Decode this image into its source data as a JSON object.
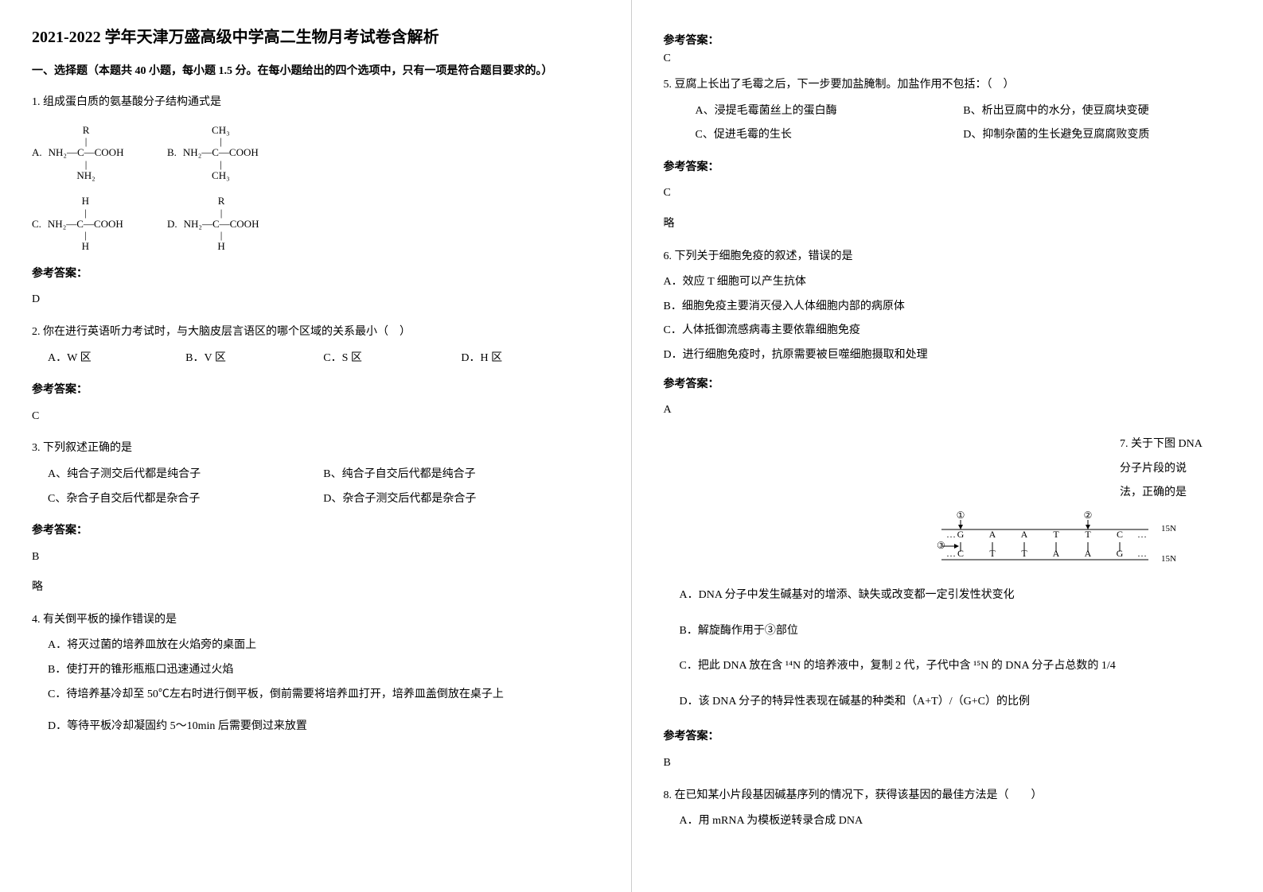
{
  "title": "2021-2022 学年天津万盛高级中学高二生物月考试卷含解析",
  "section1_heading": "一、选择题（本题共 40 小题，每小题 1.5 分。在每小题给出的四个选项中，只有一项是符合题目要求的。）",
  "answer_label": "参考答案：",
  "note_text": "略",
  "q1": {
    "stem": "1. 组成蛋白质的氨基酸分子结构通式是",
    "formula": {
      "A_label": "A.",
      "A_top": "R",
      "A_mid": "NH₂—C—COOH",
      "A_bot": "NH₂",
      "B_label": "B.",
      "B_top": "CH₃",
      "B_mid": "NH₂—C—COOH",
      "B_bot": "CH₃",
      "C_label": "C.",
      "C_top": "H",
      "C_mid": "NH₂—C—COOH",
      "C_bot": "H",
      "D_label": "D.",
      "D_top": "R",
      "D_mid": "NH₂—C—COOH",
      "D_bot": "H"
    },
    "answer": "D"
  },
  "q2": {
    "stem": "2. 你在进行英语听力考试时，与大脑皮层言语区的哪个区域的关系最小（　）",
    "choices": {
      "A": "A．W 区",
      "B": "B．V 区",
      "C": "C．S 区",
      "D": "D．H 区"
    },
    "answer": "C"
  },
  "q3": {
    "stem": "3. 下列叙述正确的是",
    "choices": {
      "A": "A、纯合子测交后代都是纯合子",
      "B": "B、纯合子自交后代都是纯合子",
      "C": "C、杂合子自交后代都是杂合子",
      "D": "D、杂合子测交后代都是杂合子"
    },
    "answer": "B"
  },
  "q4": {
    "stem": "4. 有关倒平板的操作错误的是",
    "choices": {
      "A": "A．将灭过菌的培养皿放在火焰旁的桌面上",
      "B": "B．使打开的锥形瓶瓶口迅速通过火焰",
      "C": "C．待培养基冷却至 50℃左右时进行倒平板，倒前需要将培养皿打开，培养皿盖倒放在桌子上",
      "D": "D．等待平板冷却凝固约 5～10min 后需要倒过来放置"
    },
    "answer": "C"
  },
  "q5": {
    "stem": "5. 豆腐上长出了毛霉之后，下一步要加盐腌制。加盐作用不包括：（　）",
    "choices": {
      "A": "A、浸提毛霉菌丝上的蛋白酶",
      "B": "B、析出豆腐中的水分，使豆腐块变硬",
      "C": "C、促进毛霉的生长",
      "D": "D、抑制杂菌的生长避免豆腐腐败变质"
    },
    "answer": "C"
  },
  "q6": {
    "stem": "6. 下列关于细胞免疫的叙述，错误的是",
    "choices": {
      "A": "A．效应 T 细胞可以产生抗体",
      "B": "B．细胞免疫主要消灭侵入人体细胞内部的病原体",
      "C": "C．人体抵御流感病毒主要依靠细胞免疫",
      "D": "D．进行细胞免疫时，抗原需要被巨噬细胞摄取和处理"
    },
    "answer": "A"
  },
  "q7": {
    "stem_l1": "7. 关于下图 DNA",
    "stem_l2": "分子片段的说",
    "stem_l3": "法，正确的是",
    "dna": {
      "top_bases": [
        "G",
        "A",
        "A",
        "T",
        "T",
        "C"
      ],
      "bottom_bases": [
        "C",
        "T",
        "T",
        "A",
        "A",
        "G"
      ],
      "arrow1_label": "①",
      "arrow2_label": "②",
      "left_label": "③",
      "n15_top": "15N",
      "n15_bot": "15N",
      "top_arrow_idx": [
        0,
        4
      ],
      "colors": {
        "line": "#000",
        "text": "#000"
      },
      "font_size": 12
    },
    "choices": {
      "A": "A．DNA 分子中发生碱基对的增添、缺失或改变都一定引发性状变化",
      "B": "B．解旋酶作用于③部位",
      "C": "C．把此 DNA 放在含 ¹⁴N 的培养液中，复制 2 代，子代中含 ¹⁵N 的 DNA 分子占总数的 1/4",
      "D": "D．该 DNA 分子的特异性表现在碱基的种类和（A+T）/（G+C）的比例"
    },
    "answer": "B"
  },
  "q8": {
    "stem": "8. 在已知某小片段基因碱基序列的情况下，获得该基因的最佳方法是（　　）",
    "choices": {
      "A": "A．用 mRNA 为模板逆转录合成 DNA"
    }
  }
}
